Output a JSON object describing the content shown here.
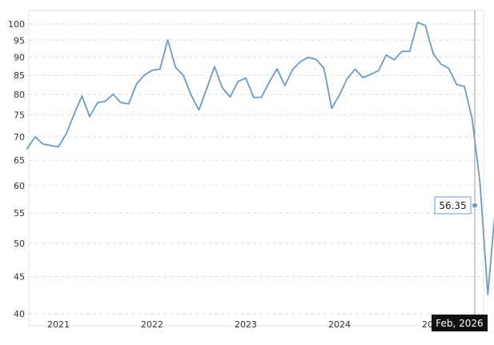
{
  "chart_data": {
    "type": "line",
    "title": "",
    "xlabel": "",
    "ylabel": "",
    "y_scale": "log",
    "ylim": [
      39.5,
      103
    ],
    "y_ticks": [
      40,
      45,
      50,
      55,
      60,
      65,
      70,
      75,
      80,
      85,
      90,
      95,
      100
    ],
    "x_ticks": [
      "2021",
      "2022",
      "2023",
      "2024",
      "2025"
    ],
    "grid": true,
    "series": [
      {
        "color": "#6b9bc6",
        "points": [
          [
            "2020-09",
            67.4
          ],
          [
            "2020-10",
            70.0
          ],
          [
            "2020-11",
            68.4
          ],
          [
            "2020-12",
            68.1
          ],
          [
            "2021-01",
            67.8
          ],
          [
            "2021-02",
            70.7
          ],
          [
            "2021-03",
            75.2
          ],
          [
            "2021-04",
            79.6
          ],
          [
            "2021-05",
            74.6
          ],
          [
            "2021-06",
            78.0
          ],
          [
            "2021-07",
            78.3
          ],
          [
            "2021-08",
            80.1
          ],
          [
            "2021-09",
            78.0
          ],
          [
            "2021-10",
            77.7
          ],
          [
            "2021-11",
            82.7
          ],
          [
            "2021-12",
            85.1
          ],
          [
            "2022-01",
            86.4
          ],
          [
            "2022-02",
            86.7
          ],
          [
            "2022-03",
            95.1
          ],
          [
            "2022-04",
            87.2
          ],
          [
            "2022-05",
            85.0
          ],
          [
            "2022-06",
            79.8
          ],
          [
            "2022-07",
            76.2
          ],
          [
            "2022-08",
            81.6
          ],
          [
            "2022-09",
            87.4
          ],
          [
            "2022-10",
            81.7
          ],
          [
            "2022-11",
            79.4
          ],
          [
            "2022-12",
            83.4
          ],
          [
            "2023-01",
            84.3
          ],
          [
            "2023-02",
            79.3
          ],
          [
            "2023-03",
            79.3
          ],
          [
            "2023-04",
            83.2
          ],
          [
            "2023-05",
            86.8
          ],
          [
            "2023-06",
            82.3
          ],
          [
            "2023-07",
            86.6
          ],
          [
            "2023-08",
            88.8
          ],
          [
            "2023-09",
            90.0
          ],
          [
            "2023-10",
            89.4
          ],
          [
            "2023-11",
            87.0
          ],
          [
            "2023-12",
            76.6
          ],
          [
            "2024-01",
            79.9
          ],
          [
            "2024-02",
            84.2
          ],
          [
            "2024-03",
            86.7
          ],
          [
            "2024-04",
            84.4
          ],
          [
            "2024-05",
            85.3
          ],
          [
            "2024-06",
            86.3
          ],
          [
            "2024-07",
            90.7
          ],
          [
            "2024-08",
            89.3
          ],
          [
            "2024-09",
            91.7
          ],
          [
            "2024-10",
            91.7
          ],
          [
            "2024-11",
            100.5
          ],
          [
            "2024-12",
            99.5
          ],
          [
            "2025-01",
            91.1
          ],
          [
            "2025-02",
            88.1
          ],
          [
            "2025-03",
            86.9
          ],
          [
            "2025-04",
            82.6
          ],
          [
            "2025-05",
            82.1
          ],
          [
            "2025-06",
            74.0
          ],
          [
            "2025-07",
            60.5
          ],
          [
            "2025-08",
            42.5
          ],
          [
            "2025-09",
            56.35
          ],
          [
            "2025-10",
            58.9
          ]
        ]
      }
    ],
    "tooltip": {
      "value": "56.35",
      "date": "Feb, 2026"
    }
  }
}
